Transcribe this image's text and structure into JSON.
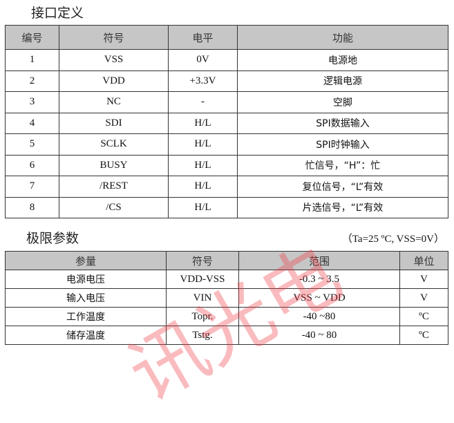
{
  "interface": {
    "title": "接口定义",
    "headers": [
      "编号",
      "符号",
      "电平",
      "功能"
    ],
    "rows": [
      [
        "1",
        "VSS",
        "0V",
        "电源地"
      ],
      [
        "2",
        "VDD",
        "+3.3V",
        "逻辑电源"
      ],
      [
        "3",
        "NC",
        "-",
        "空脚"
      ],
      [
        "4",
        "SDI",
        "H/L",
        "SPI数据输入"
      ],
      [
        "5",
        "SCLK",
        "H/L",
        "SPI时钟输入"
      ],
      [
        "6",
        "BUSY",
        "H/L",
        "忙信号，“H”：忙"
      ],
      [
        "7",
        "/REST",
        "H/L",
        "复位信号，“L”有效"
      ],
      [
        "8",
        "/CS",
        "H/L",
        "片选信号，“L”有效"
      ]
    ]
  },
  "limits": {
    "title": "极限参数",
    "condition": "（Ta=25 ºC, VSS=0V）",
    "headers": [
      "参量",
      "符号",
      "范围",
      "单位"
    ],
    "rows": [
      [
        "电源电压",
        "VDD-VSS",
        "-0.3 ~ 3.5",
        "V"
      ],
      [
        "输入电压",
        "VIN",
        "VSS ~ VDD",
        "V"
      ],
      [
        "工作温度",
        "Topr.",
        "-40 ~80",
        "ºC"
      ],
      [
        "储存温度",
        "Tstg.",
        "-40 ~ 80",
        "ºC"
      ]
    ]
  },
  "watermark": "讯光电"
}
